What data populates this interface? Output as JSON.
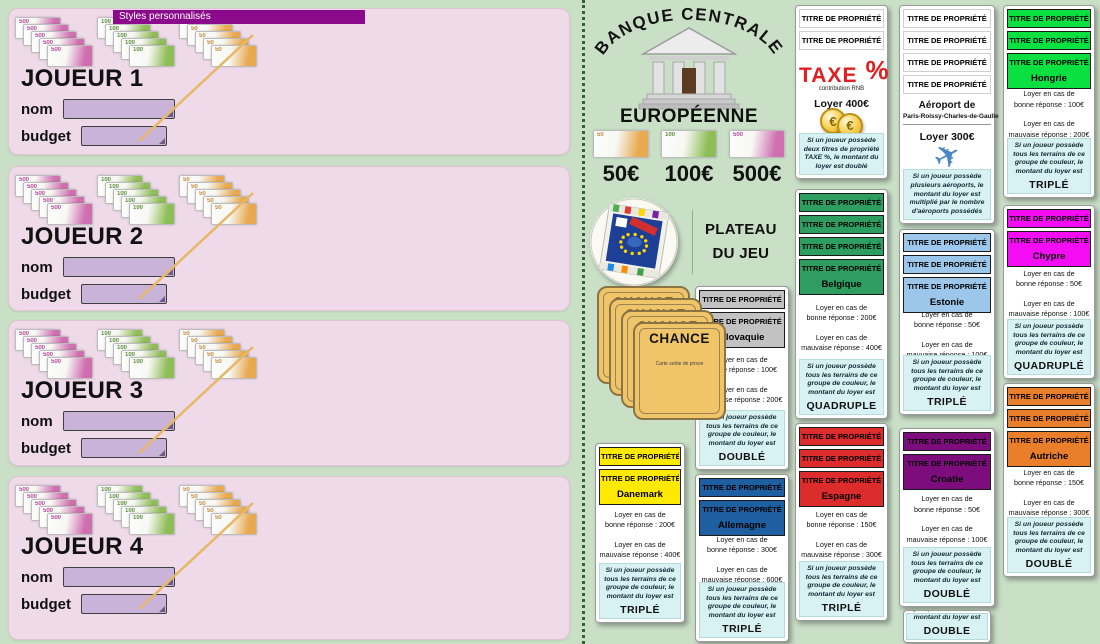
{
  "colors": {
    "page_bg": "#c9dfc6",
    "panel_bg": "#eedae8"
  },
  "styles_bar": {
    "label": "Styles personnalisés",
    "color": "#8b0a8b"
  },
  "players": [
    {
      "title": "JOUEUR 1",
      "nom_label": "nom",
      "budget_label": "budget",
      "nom_value": "",
      "budget_value": ""
    },
    {
      "title": "JOUEUR 2",
      "nom_label": "nom",
      "budget_label": "budget",
      "nom_value": "",
      "budget_value": ""
    },
    {
      "title": "JOUEUR 3",
      "nom_label": "nom",
      "budget_label": "budget",
      "nom_value": "",
      "budget_value": ""
    },
    {
      "title": "JOUEUR 4",
      "nom_label": "nom",
      "budget_label": "budget",
      "nom_value": "",
      "budget_value": ""
    }
  ],
  "bills": [
    {
      "id": "b500",
      "label": "500€",
      "number": "500",
      "color": "#cf6fb0",
      "accent": "#a62d84"
    },
    {
      "id": "b100",
      "label": "100€",
      "number": "100",
      "color": "#8fbe58",
      "accent": "#3f7d1e"
    },
    {
      "id": "b50",
      "label": "50€",
      "number": "50",
      "color": "#e8a84d",
      "accent": "#c07818"
    }
  ],
  "player_stack_order": [
    "b500",
    "b100",
    "b50"
  ],
  "bank": {
    "title_arc": "BANQUE CENTRALE",
    "title_bottom": "EUROPÉENNE",
    "bill_order": [
      "b50",
      "b100",
      "b500"
    ]
  },
  "plateau": {
    "line1": "PLATEAU",
    "line2": "DU JEU"
  },
  "chance": {
    "label": "CHANCE",
    "subtitle": "Carte sortie de prison",
    "count": 4
  },
  "property": {
    "header": "TITRE DE PROPRIÉTÉ",
    "rent_lead": "Loyer en cas de",
    "rent_good_label": "bonne réponse :",
    "rent_bad_label": "mauvaise réponse :",
    "group_note": "Si un joueur possède tous les terrains de ce groupe de couleur, le montant du loyer est",
    "note_bg": "#d8f1f2"
  },
  "tax_card": {
    "id": "taxe",
    "headers": 2,
    "title": "TAXE",
    "percent": "%",
    "subtitle": "contribution RNB",
    "rent": "Loyer 400€",
    "note": "Si un joueur possède deux titres de propriété TAXE %, le montant du loyer est doublé",
    "accent": "#e02020"
  },
  "airport_card": {
    "id": "aeroport",
    "headers": 4,
    "name_line1": "Aéroport de",
    "name_line2": "Paris-Roissy-Charles-de-Gaulle",
    "rent": "Loyer 300€",
    "note": "Si un joueur possède plusieurs aéroports, le montant du loyer est multiplié par le nombre d'aéroports possédés"
  },
  "country_cards": [
    {
      "id": "slovaquie",
      "country": "Slovaquie",
      "color": "#c2c2c2",
      "stack": 2,
      "good": "100€",
      "bad": "200€",
      "multiplier": "DOUBLÉ"
    },
    {
      "id": "allemagne",
      "country": "Allemagne",
      "color": "#1d5fa0",
      "stack": 2,
      "good": "300€",
      "bad": "600€",
      "multiplier": "TRIPLÉ"
    },
    {
      "id": "danemark",
      "country": "Danemark",
      "color": "#ffe900",
      "stack": 2,
      "good": "200€",
      "bad": "400€",
      "multiplier": "TRIPLÉ"
    },
    {
      "id": "belgique",
      "country": "Belgique",
      "color": "#2d9e5f",
      "stack": 4,
      "good": "200€",
      "bad": "400€",
      "multiplier": "QUADRUPLE"
    },
    {
      "id": "espagne",
      "country": "Espagne",
      "color": "#dd2c2c",
      "stack": 3,
      "good": "150€",
      "bad": "300€",
      "multiplier": "TRIPLÉ"
    },
    {
      "id": "estonie",
      "country": "Estonie",
      "color": "#9cc6ea",
      "stack": 3,
      "good": "50€",
      "bad": "100€",
      "multiplier": "TRIPLÉ"
    },
    {
      "id": "croatie",
      "country": "Croatie",
      "color": "#7d0d7d",
      "stack": 2,
      "good": "50€",
      "bad": "100€",
      "multiplier": "DOUBLÉ"
    },
    {
      "id": "hongrie",
      "country": "Hongrie",
      "color": "#0ae141",
      "stack": 3,
      "good": "100€",
      "bad": "200€",
      "multiplier": "TRIPLÉ"
    },
    {
      "id": "chypre",
      "country": "Chypre",
      "color": "#f40df4",
      "stack": 2,
      "good": "50€",
      "bad": "100€",
      "multiplier": "QUADRUPLÉ"
    },
    {
      "id": "autriche",
      "country": "Autriche",
      "color": "#ea7f2b",
      "stack": 3,
      "good": "150€",
      "bad": "300€",
      "multiplier": "DOUBLÉ"
    }
  ],
  "partial_card": {
    "id": "partial",
    "note_tail": "groupe de couleur, le montant du loyer est",
    "multiplier": "DOUBLE"
  }
}
